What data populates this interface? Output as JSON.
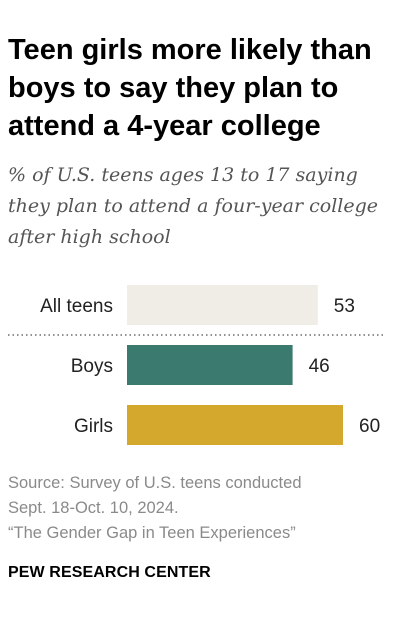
{
  "title": "Teen girls more likely than boys to say they plan to attend a 4-year college",
  "subtitle": "% of U.S. teens ages 13 to 17 saying they plan to attend a four-year college after high school",
  "source_line1": "Source: Survey of U.S. teens conducted",
  "source_line2": "Sept. 18-Oct. 10, 2024.",
  "source_line3": "“The Gender Gap in Teen Experiences”",
  "brand": "PEW RESEARCH CENTER",
  "chart_data": {
    "type": "bar",
    "orientation": "horizontal",
    "categories": [
      "All teens",
      "Boys",
      "Girls"
    ],
    "values": [
      53,
      46,
      60
    ],
    "colors": [
      "#efede6",
      "#3b7a6e",
      "#d4a82c"
    ],
    "divider_after": "All teens",
    "xlim": [
      0,
      100
    ],
    "grid": false
  }
}
